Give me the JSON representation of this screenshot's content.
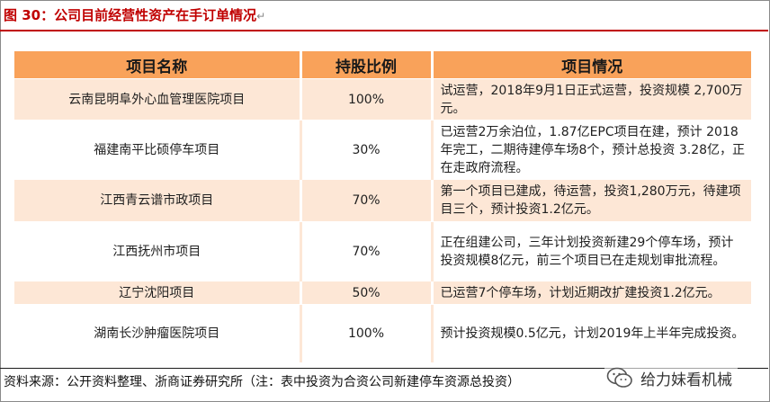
{
  "title": "图 30：公司目前经营性资产在手订单情况",
  "paragraph_mark": "↵",
  "table": {
    "headers": [
      "项目名称",
      "持股比例",
      "项目情况"
    ],
    "rows": [
      {
        "name": "云南昆明阜外心血管理医院项目",
        "pct": "100%",
        "desc": "试运营，2018年9月1日正式运营，投资规模 2,700万元。"
      },
      {
        "name": "福建南平比硕停车项目",
        "pct": "30%",
        "desc": "已运营2万余泊位，1.87亿EPC项目在建，预计 2018年完工，二期待建停车场8个，预计总投资 3.28亿，正在走政府流程。"
      },
      {
        "name": "江西青云谱市政项目",
        "pct": "70%",
        "desc": "第一个项目已建成，待运营，投资1,280万元，待建项目三个，预计投资1.2亿元。"
      },
      {
        "name": "江西抚州市项目",
        "pct": "70%",
        "desc": "正在组建公司，三年计划投资新建29个停车场，预计投资规模8亿元，前三个项目已在走规划审批流程。"
      },
      {
        "name": "辽宁沈阳项目",
        "pct": "50%",
        "desc": "已运营7个停车场，计划近期改扩建投资1.2亿元。"
      },
      {
        "name": "湖南长沙肿瘤医院项目",
        "pct": "100%",
        "desc": "预计投资规模0.5亿元，计划2019年上半年完成投资。"
      }
    ]
  },
  "source": "资料来源：公开资料整理、浙商证券研究所（注：表中投资为合资公司新建停车资源总投资）",
  "watermark": {
    "text": "给力妹看机械",
    "icon": "wechat-icon"
  }
}
